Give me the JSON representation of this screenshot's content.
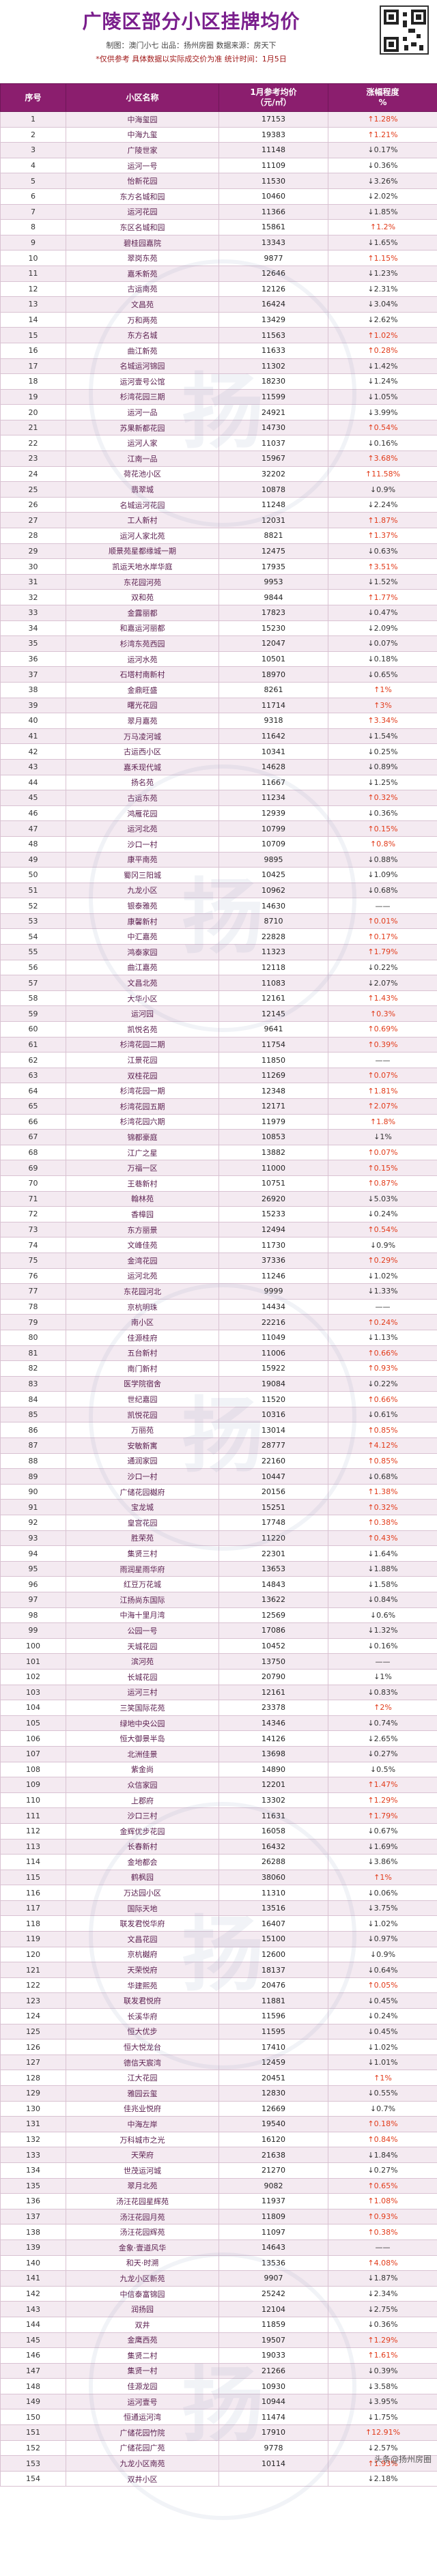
{
  "header": {
    "title": "广陵区部分小区挂牌均价",
    "meta1": "制图：澳门小七   出品：扬州房圈   数据来源：房天下",
    "meta2": "*仅供参考  具体数据以实际成交价为准   统计时间：1月5日"
  },
  "table": {
    "columns": [
      "序号",
      "小区名称",
      "1月参考均价\n（元/㎡）",
      "涨幅程度\n%"
    ],
    "rows": [
      [
        "1",
        "中海玺园",
        "17153",
        "↑1.28%"
      ],
      [
        "2",
        "中海九玺",
        "19383",
        "↑1.21%"
      ],
      [
        "3",
        "广陵世家",
        "11148",
        "↓0.17%"
      ],
      [
        "4",
        "运河一号",
        "11109",
        "↓0.36%"
      ],
      [
        "5",
        "怡新花园",
        "11530",
        "↓3.26%"
      ],
      [
        "6",
        "东方名城和园",
        "10460",
        "↓2.02%"
      ],
      [
        "7",
        "运河花园",
        "11366",
        "↓1.85%"
      ],
      [
        "8",
        "东区名城和园",
        "15861",
        "↑1.2%"
      ],
      [
        "9",
        "碧桂园嘉院",
        "13343",
        "↓1.65%"
      ],
      [
        "10",
        "翠岗东苑",
        "9877",
        "↑1.15%"
      ],
      [
        "11",
        "嘉禾新苑",
        "12646",
        "↓1.23%"
      ],
      [
        "12",
        "古运南苑",
        "12126",
        "↓2.31%"
      ],
      [
        "13",
        "文昌苑",
        "16424",
        "↓3.04%"
      ],
      [
        "14",
        "万和两苑",
        "13429",
        "↓2.62%"
      ],
      [
        "15",
        "东方名城",
        "11563",
        "↑1.02%"
      ],
      [
        "16",
        "曲江新苑",
        "11633",
        "↑0.28%"
      ],
      [
        "17",
        "名城运河锦园",
        "11302",
        "↓1.42%"
      ],
      [
        "18",
        "运河壹号公馆",
        "18230",
        "↓1.24%"
      ],
      [
        "19",
        "杉湾花园三期",
        "11599",
        "↓1.05%"
      ],
      [
        "20",
        "运河一品",
        "24921",
        "↓3.99%"
      ],
      [
        "21",
        "苏果新都花园",
        "14730",
        "↑0.54%"
      ],
      [
        "22",
        "运河人家",
        "11037",
        "↓0.16%"
      ],
      [
        "23",
        "江南一品",
        "15967",
        "↑3.68%"
      ],
      [
        "24",
        "荷花池小区",
        "32202",
        "↑11.58%"
      ],
      [
        "25",
        "翡翠城",
        "10878",
        "↓0.9%"
      ],
      [
        "26",
        "名城运河花园",
        "11248",
        "↓2.24%"
      ],
      [
        "27",
        "工人新村",
        "12031",
        "↑1.87%"
      ],
      [
        "28",
        "运河人家北苑",
        "8821",
        "↑1.37%"
      ],
      [
        "29",
        "顺景苑星都缘城一期",
        "12475",
        "↓0.63%"
      ],
      [
        "30",
        "凯运天地水岸华庭",
        "17935",
        "↑3.51%"
      ],
      [
        "31",
        "东花园河苑",
        "9953",
        "↓1.52%"
      ],
      [
        "32",
        "双和苑",
        "9844",
        "↑1.77%"
      ],
      [
        "33",
        "金露丽都",
        "17823",
        "↓0.47%"
      ],
      [
        "34",
        "和嘉运河丽都",
        "15230",
        "↓2.09%"
      ],
      [
        "35",
        "杉湾东苑西园",
        "12047",
        "↓0.07%"
      ],
      [
        "36",
        "运河水苑",
        "10501",
        "↓0.18%"
      ],
      [
        "37",
        "石塔村南新村",
        "18970",
        "↓0.65%"
      ],
      [
        "38",
        "金鼎旺盛",
        "8261",
        "↑1%"
      ],
      [
        "39",
        "曙光花园",
        "11714",
        "↑3%"
      ],
      [
        "40",
        "翠月嘉苑",
        "9318",
        "↑3.34%"
      ],
      [
        "41",
        "万马凌河城",
        "11642",
        "↓1.54%"
      ],
      [
        "42",
        "古运西小区",
        "10341",
        "↓0.25%"
      ],
      [
        "43",
        "嘉禾现代城",
        "14628",
        "↓0.89%"
      ],
      [
        "44",
        "扬名苑",
        "11667",
        "↓1.25%"
      ],
      [
        "45",
        "古运东苑",
        "11234",
        "↑0.32%"
      ],
      [
        "46",
        "鸿雁花园",
        "12939",
        "↓0.36%"
      ],
      [
        "47",
        "运河北苑",
        "10799",
        "↑0.15%"
      ],
      [
        "48",
        "沙口一村",
        "10709",
        "↑0.8%"
      ],
      [
        "49",
        "康平南苑",
        "9895",
        "↓0.88%"
      ],
      [
        "50",
        "蜀冈三阳城",
        "10425",
        "↓1.09%"
      ],
      [
        "51",
        "九龙小区",
        "10962",
        "↓0.68%"
      ],
      [
        "52",
        "银泰雅苑",
        "14630",
        "——"
      ],
      [
        "53",
        "康馨新村",
        "8710",
        "↑0.01%"
      ],
      [
        "54",
        "中汇嘉苑",
        "22828",
        "↑0.17%"
      ],
      [
        "55",
        "鸿泰家园",
        "11323",
        "↑1.79%"
      ],
      [
        "56",
        "曲江嘉苑",
        "12118",
        "↓0.22%"
      ],
      [
        "57",
        "文昌北苑",
        "11083",
        "↓2.07%"
      ],
      [
        "58",
        "大华小区",
        "12161",
        "↑1.43%"
      ],
      [
        "59",
        "运河园",
        "12145",
        "↑0.3%"
      ],
      [
        "60",
        "凯悦名苑",
        "9641",
        "↑0.69%"
      ],
      [
        "61",
        "杉湾花园二期",
        "11754",
        "↑0.39%"
      ],
      [
        "62",
        "江景花园",
        "11850",
        "——"
      ],
      [
        "63",
        "双桂花园",
        "11269",
        "↑0.07%"
      ],
      [
        "64",
        "杉湾花园一期",
        "12348",
        "↑1.81%"
      ],
      [
        "65",
        "杉湾花园五期",
        "12171",
        "↑2.07%"
      ],
      [
        "66",
        "杉湾花园六期",
        "11979",
        "↑1.8%"
      ],
      [
        "67",
        "锦都豪庭",
        "10853",
        "↓1%"
      ],
      [
        "68",
        "江广之星",
        "13882",
        "↑0.07%"
      ],
      [
        "69",
        "万福一区",
        "11000",
        "↑0.15%"
      ],
      [
        "70",
        "王巷新村",
        "10751",
        "↑0.87%"
      ],
      [
        "71",
        "翰林苑",
        "26920",
        "↓5.03%"
      ],
      [
        "72",
        "香樟园",
        "15233",
        "↓0.24%"
      ],
      [
        "73",
        "东方丽景",
        "12494",
        "↑0.54%"
      ],
      [
        "74",
        "文峰佳苑",
        "11730",
        "↓0.9%"
      ],
      [
        "75",
        "金湾花园",
        "37336",
        "↑0.29%"
      ],
      [
        "76",
        "运河北苑",
        "11246",
        "↓1.02%"
      ],
      [
        "77",
        "东花园河北",
        "9999",
        "↓1.33%"
      ],
      [
        "78",
        "京杭明珠",
        "14434",
        "——"
      ],
      [
        "79",
        "南小区",
        "22216",
        "↑0.24%"
      ],
      [
        "80",
        "佳源桂府",
        "11049",
        "↓1.13%"
      ],
      [
        "81",
        "五台新村",
        "11006",
        "↑0.66%"
      ],
      [
        "82",
        "南门新村",
        "15922",
        "↑0.93%"
      ],
      [
        "83",
        "医学院宿舍",
        "19084",
        "↓0.22%"
      ],
      [
        "84",
        "世纪嘉园",
        "11520",
        "↑0.66%"
      ],
      [
        "85",
        "凯悦花园",
        "10316",
        "↓0.61%"
      ],
      [
        "86",
        "万丽苑",
        "13014",
        "↑0.85%"
      ],
      [
        "87",
        "安敏新寓",
        "28777",
        "↑4.12%"
      ],
      [
        "88",
        "通润家园",
        "22160",
        "↑0.85%"
      ],
      [
        "89",
        "沙口一村",
        "10447",
        "↓0.68%"
      ],
      [
        "90",
        "广储花园樾府",
        "20156",
        "↑1.38%"
      ],
      [
        "91",
        "宝龙城",
        "15251",
        "↑0.32%"
      ],
      [
        "92",
        "皇宫花园",
        "17748",
        "↑0.38%"
      ],
      [
        "93",
        "胜荣苑",
        "11220",
        "↑0.43%"
      ],
      [
        "94",
        "集贤三村",
        "22301",
        "↓1.64%"
      ],
      [
        "95",
        "雨润星雨华府",
        "13653",
        "↓1.88%"
      ],
      [
        "96",
        "红豆万花城",
        "14843",
        "↓1.58%"
      ],
      [
        "97",
        "江扬尚东国际",
        "13622",
        "↓0.84%"
      ],
      [
        "98",
        "中海十里月湾",
        "12569",
        "↓0.6%"
      ],
      [
        "99",
        "公园一号",
        "17086",
        "↓1.32%"
      ],
      [
        "100",
        "天城花园",
        "10452",
        "↓0.16%"
      ],
      [
        "101",
        "滨河苑",
        "13750",
        "——"
      ],
      [
        "102",
        "长城花园",
        "20790",
        "↓1%"
      ],
      [
        "103",
        "运河三村",
        "12161",
        "↓0.83%"
      ],
      [
        "104",
        "三笑国际花苑",
        "23378",
        "↑2%"
      ],
      [
        "105",
        "绿地中央公园",
        "14346",
        "↓0.74%"
      ],
      [
        "106",
        "恒大御景半岛",
        "14126",
        "↓2.65%"
      ],
      [
        "107",
        "北洲佳景",
        "13698",
        "↓0.27%"
      ],
      [
        "108",
        "紫金尚",
        "14890",
        "↓0.5%"
      ],
      [
        "109",
        "众信家园",
        "12201",
        "↑1.47%"
      ],
      [
        "110",
        "上郡府",
        "13302",
        "↑1.29%"
      ],
      [
        "111",
        "沙口三村",
        "11631",
        "↑1.79%"
      ],
      [
        "112",
        "金辉优步花园",
        "16058",
        "↓0.67%"
      ],
      [
        "113",
        "长春新村",
        "16432",
        "↓1.69%"
      ],
      [
        "114",
        "金地都会",
        "26288",
        "↓3.86%"
      ],
      [
        "115",
        "鹤枫园",
        "38060",
        "↑1%"
      ],
      [
        "116",
        "万达园小区",
        "11310",
        "↓0.06%"
      ],
      [
        "117",
        "国际天地",
        "13516",
        "↓3.75%"
      ],
      [
        "118",
        "联发君悦华府",
        "16407",
        "↓1.02%"
      ],
      [
        "119",
        "文昌花园",
        "15100",
        "↓0.97%"
      ],
      [
        "120",
        "京杭樾府",
        "12600",
        "↓0.9%"
      ],
      [
        "121",
        "天荣悦府",
        "18137",
        "↓0.64%"
      ],
      [
        "122",
        "华建熙苑",
        "20476",
        "↑0.05%"
      ],
      [
        "123",
        "联发君悦府",
        "11881",
        "↓0.45%"
      ],
      [
        "124",
        "长溪华府",
        "11596",
        "↓0.24%"
      ],
      [
        "125",
        "恒大优步",
        "11595",
        "↓0.45%"
      ],
      [
        "126",
        "恒大悦龙台",
        "17410",
        "↓1.02%"
      ],
      [
        "127",
        "德信天宸湾",
        "12459",
        "↓1.01%"
      ],
      [
        "128",
        "江大花园",
        "20451",
        "↑1%"
      ],
      [
        "129",
        "雅园云玺",
        "12830",
        "↓0.55%"
      ],
      [
        "130",
        "佳兆业悦府",
        "12669",
        "↓0.7%"
      ],
      [
        "131",
        "中海左岸",
        "19540",
        "↑0.18%"
      ],
      [
        "132",
        "万科城市之光",
        "16120",
        "↑0.84%"
      ],
      [
        "133",
        "天荣府",
        "21638",
        "↓1.84%"
      ],
      [
        "134",
        "世茂运河城",
        "21270",
        "↓0.27%"
      ],
      [
        "135",
        "翠月北苑",
        "9082",
        "↑0.65%"
      ],
      [
        "136",
        "汤汪花园星辉苑",
        "11937",
        "↑1.08%"
      ],
      [
        "137",
        "汤汪花园月苑",
        "11809",
        "↑0.93%"
      ],
      [
        "138",
        "汤汪花园辉苑",
        "11097",
        "↑0.38%"
      ],
      [
        "139",
        "金象·壹道风华",
        "14643",
        "——"
      ],
      [
        "140",
        "和天·时溯",
        "13536",
        "↑4.08%"
      ],
      [
        "141",
        "九龙小区新苑",
        "9907",
        "↓1.87%"
      ],
      [
        "142",
        "中信泰富锦园",
        "25242",
        "↓2.34%"
      ],
      [
        "143",
        "润扬园",
        "12104",
        "↓2.75%"
      ],
      [
        "144",
        "双井",
        "11859",
        "↓0.36%"
      ],
      [
        "145",
        "金鹰西苑",
        "19507",
        "↑1.29%"
      ],
      [
        "146",
        "集贤二村",
        "19033",
        "↑1.61%"
      ],
      [
        "147",
        "集贤一村",
        "21266",
        "↓0.39%"
      ],
      [
        "148",
        "佳源龙园",
        "10930",
        "↓3.58%"
      ],
      [
        "149",
        "运河壹号",
        "10944",
        "↓3.95%"
      ],
      [
        "150",
        "恒通运河湾",
        "11474",
        "↓1.75%"
      ],
      [
        "151",
        "广储花园竹院",
        "17910",
        "↑12.91%"
      ],
      [
        "152",
        "广储花园广苑",
        "9778",
        "↓2.57%"
      ],
      [
        "153",
        "九龙小区南苑",
        "10114",
        "↑1.93%"
      ],
      [
        "154",
        "双井小区",
        "",
        "↓2.18%"
      ]
    ]
  },
  "watermark": "扬",
  "credit": "头条@扬州房圈"
}
